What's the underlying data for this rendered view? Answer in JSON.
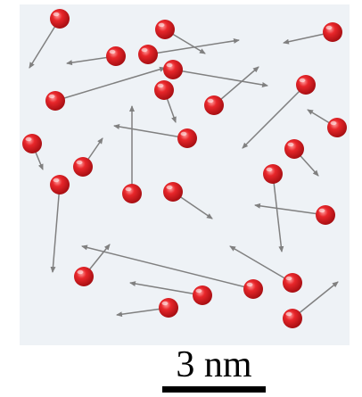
{
  "scale_bar": {
    "label": "3 nm"
  }
}
